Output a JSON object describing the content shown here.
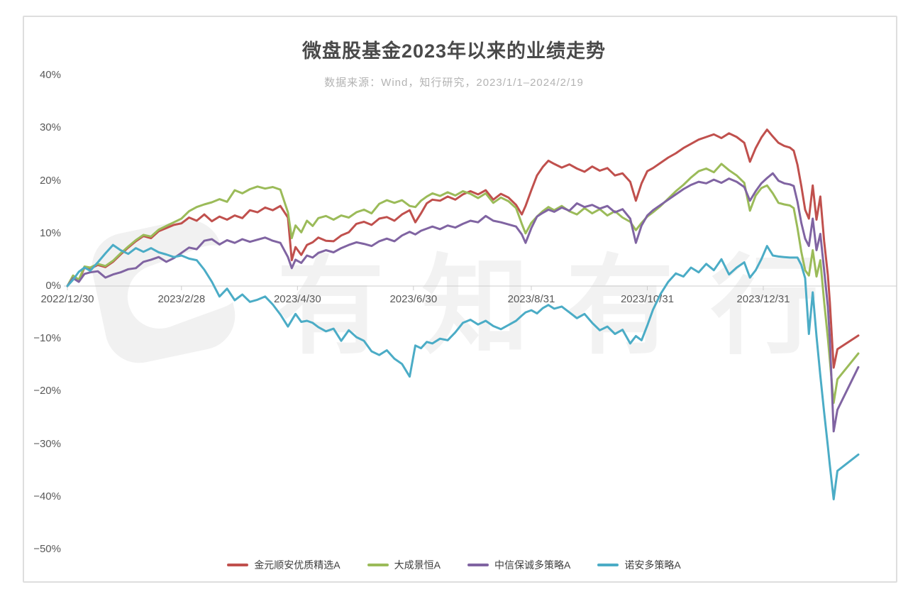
{
  "header": {
    "title": "微盘股基金2023年以来的业绩走势",
    "subtitle": "数据来源：Wind，知行研究，2023/1/1–2024/2/19"
  },
  "watermark": {
    "text": "有知有行"
  },
  "chart_data": {
    "type": "line",
    "title": "微盘股基金2023年以来的业绩走势",
    "subtitle": "数据来源：Wind，知行研究，2023/1/1–2024/2/19",
    "grid": "zero-line-only",
    "legend_position": "bottom",
    "ylim": [
      -50,
      40
    ],
    "y_unit": "percent",
    "y_ticks": [
      {
        "value": 40,
        "label": "40%"
      },
      {
        "value": 30,
        "label": "30%"
      },
      {
        "value": 20,
        "label": "20%"
      },
      {
        "value": 10,
        "label": "10%"
      },
      {
        "value": 0,
        "label": "0%"
      },
      {
        "value": -10,
        "label": "−10%"
      },
      {
        "value": -20,
        "label": "−20%"
      },
      {
        "value": -30,
        "label": "−30%"
      },
      {
        "value": -40,
        "label": "−40%"
      },
      {
        "value": -50,
        "label": "−50%"
      }
    ],
    "x_start_date": "2022/12/30",
    "x_end_date": "2024/2/19",
    "x_max_day": 416,
    "x_ticks": [
      {
        "day": 0,
        "label": "2022/12/30"
      },
      {
        "day": 60,
        "label": "2023/2/28"
      },
      {
        "day": 121,
        "label": "2023/4/30"
      },
      {
        "day": 182,
        "label": "2023/6/30"
      },
      {
        "day": 244,
        "label": "2023/8/31"
      },
      {
        "day": 305,
        "label": "2023/10/31"
      },
      {
        "day": 366,
        "label": "2023/12/31"
      }
    ],
    "x_days": [
      0,
      3,
      6,
      9,
      12,
      16,
      20,
      24,
      28,
      32,
      36,
      40,
      44,
      48,
      52,
      56,
      60,
      64,
      68,
      72,
      76,
      80,
      84,
      88,
      92,
      96,
      100,
      104,
      108,
      112,
      116,
      118,
      120,
      123,
      126,
      129,
      132,
      136,
      140,
      144,
      148,
      152,
      156,
      160,
      164,
      168,
      172,
      176,
      180,
      183,
      186,
      189,
      192,
      196,
      200,
      204,
      208,
      212,
      216,
      220,
      224,
      228,
      232,
      236,
      239,
      241,
      244,
      247,
      250,
      253,
      256,
      260,
      264,
      268,
      272,
      276,
      280,
      284,
      288,
      292,
      296,
      299,
      302,
      305,
      308,
      312,
      316,
      320,
      324,
      328,
      332,
      336,
      340,
      344,
      348,
      352,
      356,
      359,
      362,
      365,
      368,
      371,
      374,
      377,
      380,
      382,
      384,
      386,
      388,
      390,
      392,
      394,
      396,
      398,
      400,
      401,
      403,
      405,
      416
    ],
    "series": [
      {
        "name": "金元顺安优质精选A",
        "color": "#c0504d",
        "values": [
          0,
          1.8,
          1,
          3.5,
          3.3,
          4,
          3.6,
          4.6,
          6,
          7.3,
          8.5,
          9.5,
          9.1,
          10.4,
          11,
          11.6,
          11.9,
          13,
          12.4,
          13.6,
          12.3,
          13.2,
          12.6,
          13.4,
          12.9,
          14.4,
          14,
          14.9,
          14.4,
          15.2,
          13,
          4.9,
          7.4,
          5.9,
          7.8,
          8.3,
          9.2,
          8.6,
          8.5,
          9.6,
          10.2,
          11.8,
          12.2,
          11.6,
          12.8,
          13.1,
          12.4,
          13.6,
          14.4,
          12.1,
          13.8,
          15.7,
          16.4,
          16.2,
          17,
          16.4,
          17.4,
          18,
          17.4,
          18.2,
          16.4,
          17.5,
          16.8,
          15.4,
          13.6,
          15.2,
          18.2,
          21,
          22.6,
          23.8,
          23.2,
          22.5,
          23.1,
          22.3,
          21.7,
          22.7,
          21.9,
          22.4,
          21,
          21.4,
          19.8,
          16.2,
          19.5,
          21.8,
          22.4,
          23.4,
          24.4,
          25.2,
          26.2,
          27,
          27.8,
          28.3,
          28.8,
          28.1,
          29,
          28.3,
          27.2,
          23.6,
          26.2,
          28.2,
          29.7,
          28.4,
          27.2,
          26.6,
          26.3,
          25.7,
          23,
          19,
          14.5,
          12.8,
          19.1,
          12.6,
          17,
          8.5,
          2,
          -3,
          -15.5,
          -12,
          -9.4
        ]
      },
      {
        "name": "大成景恒A",
        "color": "#9bbb59",
        "values": [
          0,
          2,
          1.2,
          3.7,
          3.5,
          4.2,
          3.8,
          4.8,
          6.2,
          7.5,
          8.7,
          9.7,
          9.4,
          10.7,
          11.4,
          12.1,
          12.8,
          14.2,
          15,
          15.5,
          15.9,
          16.5,
          16,
          18.2,
          17.6,
          18.4,
          18.9,
          18.5,
          18.8,
          18.3,
          14,
          9.1,
          11.5,
          10.2,
          12.4,
          11.4,
          12.9,
          13.3,
          12.6,
          13.4,
          13,
          14,
          14.5,
          13.8,
          15.6,
          16.3,
          15.8,
          16.3,
          15.2,
          15,
          16.2,
          17,
          17.6,
          17.1,
          17.8,
          17.2,
          18,
          17.5,
          16.7,
          17.6,
          15.8,
          16.8,
          16.1,
          14.8,
          11.8,
          10,
          12,
          13.2,
          14.2,
          15,
          14.4,
          15.2,
          14.2,
          13.6,
          14.8,
          13.8,
          14.6,
          13.4,
          14.2,
          13,
          12.2,
          10.6,
          12,
          13.2,
          14,
          15.2,
          16.6,
          18,
          19.2,
          20.6,
          21.8,
          22.3,
          21.6,
          23.2,
          22,
          21,
          19.6,
          14.3,
          17.2,
          18.6,
          19.1,
          17.6,
          15.8,
          15.5,
          15.3,
          14.8,
          11,
          6.5,
          3,
          2,
          6.8,
          1.8,
          4.9,
          -3,
          -10,
          -14,
          -22.2,
          -17.7,
          -12.8
        ]
      },
      {
        "name": "中信保诚多策略A",
        "color": "#8064a2",
        "values": [
          0,
          1.5,
          0.8,
          2.3,
          2.6,
          2.8,
          1.6,
          2.2,
          2.6,
          3.2,
          3.4,
          4.6,
          5,
          5.5,
          4.6,
          5.3,
          6.3,
          7.3,
          7,
          8.6,
          8.9,
          7.9,
          8.7,
          8.2,
          8.9,
          8.4,
          8.8,
          9.2,
          8.6,
          8.2,
          5.5,
          3.4,
          5,
          4.4,
          5.8,
          5.4,
          6.3,
          6.8,
          6.4,
          7.2,
          7.8,
          8.3,
          8,
          7.6,
          8.5,
          9,
          8.5,
          9.6,
          10.3,
          9.8,
          10.5,
          10.9,
          11.3,
          10.8,
          11.5,
          11.1,
          11.8,
          12.4,
          12.1,
          13.3,
          12.4,
          12.1,
          11.7,
          11.3,
          9.8,
          8.2,
          11,
          13.2,
          13.9,
          14.5,
          14.1,
          14.9,
          14.3,
          15.7,
          15,
          15.4,
          14.7,
          15.2,
          14,
          14.6,
          12.8,
          8.2,
          11.5,
          13.4,
          14.4,
          15.4,
          16.4,
          17.4,
          18.4,
          19.2,
          19.8,
          19.5,
          20.2,
          19.6,
          20.4,
          19.8,
          18.8,
          16.2,
          18,
          19.5,
          20.5,
          21.4,
          20,
          19.5,
          19.3,
          19,
          16,
          12,
          9,
          7.6,
          12.8,
          6.8,
          9.9,
          3,
          -4,
          -10,
          -27.6,
          -23.5,
          -15.4
        ]
      },
      {
        "name": "诺安多策略A",
        "color": "#4bacc6",
        "values": [
          0,
          1.2,
          2.7,
          3.5,
          2.9,
          4.5,
          6.2,
          7.8,
          6.8,
          6.1,
          7.2,
          6.5,
          7.2,
          6.4,
          6,
          5.5,
          5.8,
          5.2,
          4.9,
          3.1,
          0.8,
          -2,
          -0.5,
          -2.7,
          -1.6,
          -3,
          -2.6,
          -2,
          -3.5,
          -5.4,
          -7.7,
          -6.5,
          -5.3,
          -6.8,
          -6.6,
          -7,
          -7.8,
          -8.6,
          -8.1,
          -10.4,
          -8.4,
          -9.7,
          -10.4,
          -12.4,
          -13.1,
          -12.2,
          -13.8,
          -14.8,
          -17.2,
          -11.3,
          -11.8,
          -10.6,
          -10.9,
          -10,
          -10.3,
          -8.8,
          -7,
          -6.4,
          -7.3,
          -6.6,
          -7.6,
          -8.2,
          -7.4,
          -6.6,
          -5.6,
          -5,
          -4.6,
          -5.2,
          -4.2,
          -3.6,
          -4.3,
          -3.9,
          -5,
          -6.1,
          -5.3,
          -7,
          -8.4,
          -7.7,
          -9.1,
          -8.3,
          -10.9,
          -9.5,
          -10.3,
          -7.5,
          -4.5,
          -1.5,
          0.8,
          2.4,
          1.8,
          3.5,
          2.6,
          4.2,
          3,
          5.1,
          2.2,
          3.5,
          4.5,
          1.6,
          3,
          5.1,
          7.6,
          5.8,
          5.6,
          5.5,
          5.4,
          5.4,
          5.4,
          4,
          1.5,
          -9.1,
          -1.2,
          -9.5,
          -17,
          -24,
          -30.5,
          -34,
          -40.5,
          -35.1,
          -32
        ]
      }
    ],
    "colors": {
      "axis_text": "#595959",
      "zero_line": "#cccccc",
      "card_border": "#dedede"
    }
  }
}
